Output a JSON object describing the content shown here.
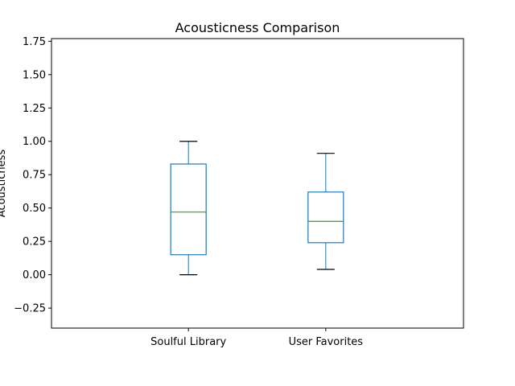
{
  "chart_data": {
    "type": "box",
    "title": "Acousticness Comparison",
    "xlabel": "",
    "ylabel": "Acousticness",
    "ylim": [
      -0.4,
      1.77
    ],
    "yticks": [
      -0.25,
      0.0,
      0.25,
      0.5,
      0.75,
      1.0,
      1.25,
      1.5,
      1.75
    ],
    "ytick_labels": [
      "−0.25",
      "0.00",
      "0.25",
      "0.50",
      "0.75",
      "1.00",
      "1.25",
      "1.50",
      "1.75"
    ],
    "grid": false,
    "categories": [
      "Soulful Library",
      "User Favorites"
    ],
    "series": [
      {
        "category": "Soulful Library",
        "whisker_low": 0.0,
        "q1": 0.15,
        "median": 0.47,
        "q3": 0.83,
        "whisker_high": 1.0
      },
      {
        "category": "User Favorites",
        "whisker_low": 0.04,
        "q1": 0.24,
        "median": 0.4,
        "q3": 0.62,
        "whisker_high": 0.91
      }
    ],
    "colors": {
      "box": "#1f77b4",
      "median": "#2ca02c",
      "whisker_cap": "#000000",
      "axes": "#000000"
    }
  }
}
